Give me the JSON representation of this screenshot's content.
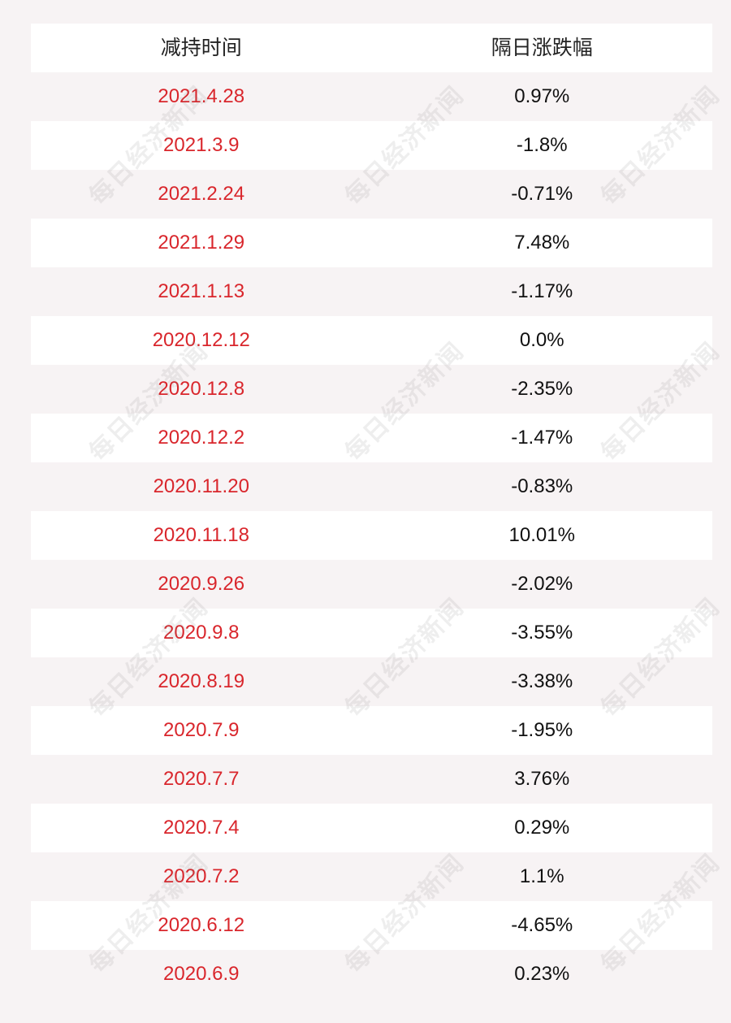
{
  "table": {
    "headers": {
      "date": "减持时间",
      "change": "隔日涨跌幅"
    },
    "rows": [
      {
        "date": "2021.4.28",
        "change": "0.97%"
      },
      {
        "date": "2021.3.9",
        "change": "-1.8%"
      },
      {
        "date": "2021.2.24",
        "change": "-0.71%"
      },
      {
        "date": "2021.1.29",
        "change": "7.48%"
      },
      {
        "date": "2021.1.13",
        "change": "-1.17%"
      },
      {
        "date": "2020.12.12",
        "change": "0.0%"
      },
      {
        "date": "2020.12.8",
        "change": "-2.35%"
      },
      {
        "date": "2020.12.2",
        "change": "-1.47%"
      },
      {
        "date": "2020.11.20",
        "change": "-0.83%"
      },
      {
        "date": "2020.11.18",
        "change": "10.01%"
      },
      {
        "date": "2020.9.26",
        "change": "-2.02%"
      },
      {
        "date": "2020.9.8",
        "change": "-3.55%"
      },
      {
        "date": "2020.8.19",
        "change": "-3.38%"
      },
      {
        "date": "2020.7.9",
        "change": "-1.95%"
      },
      {
        "date": "2020.7.7",
        "change": "3.76%"
      },
      {
        "date": "2020.7.4",
        "change": "0.29%"
      },
      {
        "date": "2020.7.2",
        "change": "1.1%"
      },
      {
        "date": "2020.6.12",
        "change": "-4.65%"
      },
      {
        "date": "2020.6.9",
        "change": "0.23%"
      }
    ]
  },
  "watermark": {
    "text": "每日经济新闻"
  },
  "colors": {
    "background": "#f7f3f4",
    "row_alt": "#ffffff",
    "date_text": "#d9262c",
    "value_text": "#111111"
  }
}
